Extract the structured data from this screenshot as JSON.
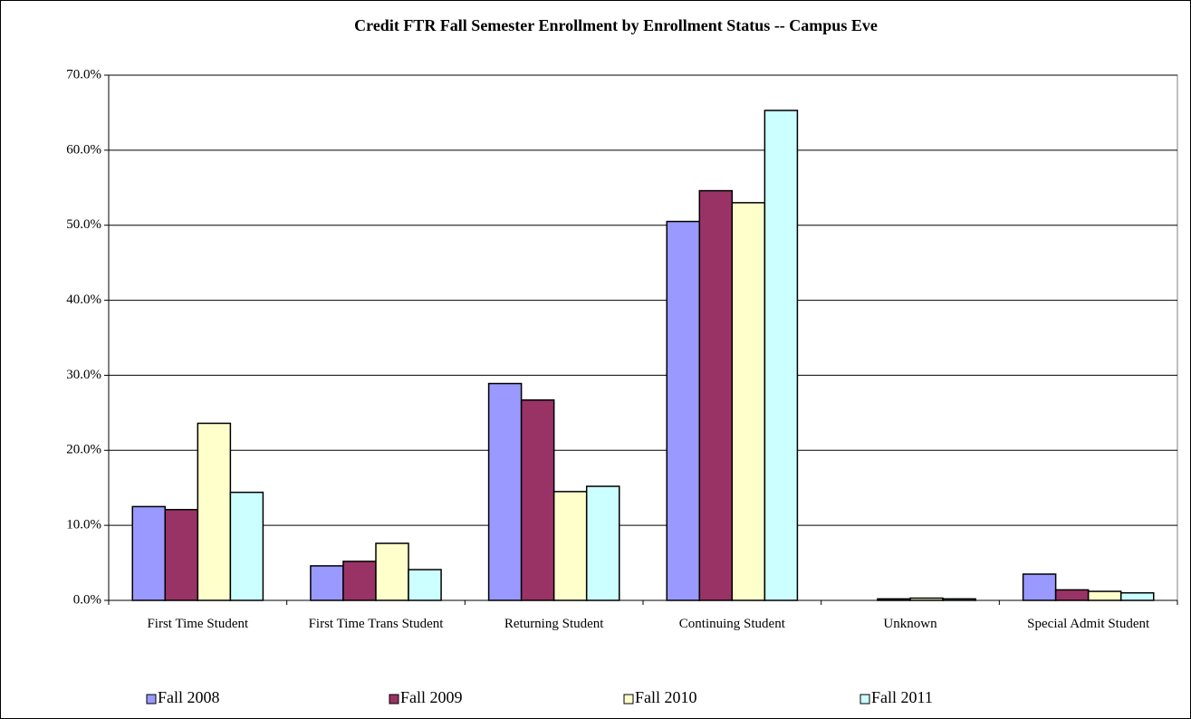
{
  "chart_data": {
    "type": "bar",
    "title": "Credit FTR Fall Semester Enrollment by Enrollment Status -- Campus Eve",
    "categories": [
      "First Time Student",
      "First Time Trans Student",
      "Returning Student",
      "Continuing Student",
      "Unknown",
      "Special Admit Student"
    ],
    "series": [
      {
        "name": "Fall 2008",
        "color": "#9999ff",
        "values": [
          12.5,
          4.6,
          28.9,
          50.5,
          0.0,
          3.5
        ]
      },
      {
        "name": "Fall 2009",
        "color": "#993366",
        "values": [
          12.1,
          5.2,
          26.7,
          54.6,
          0.2,
          1.4
        ]
      },
      {
        "name": "Fall 2010",
        "color": "#ffffcc",
        "values": [
          23.6,
          7.6,
          14.5,
          53.0,
          0.3,
          1.2
        ]
      },
      {
        "name": "Fall 2011",
        "color": "#ccffff",
        "values": [
          14.4,
          4.1,
          15.2,
          65.3,
          0.2,
          1.0
        ]
      }
    ],
    "ylim": [
      0,
      70
    ],
    "yticks": [
      {
        "value": 0,
        "label": "0.0%"
      },
      {
        "value": 10,
        "label": "10.0%"
      },
      {
        "value": 20,
        "label": "20.0%"
      },
      {
        "value": 30,
        "label": "30.0%"
      },
      {
        "value": 40,
        "label": "40.0%"
      },
      {
        "value": 50,
        "label": "50.0%"
      },
      {
        "value": 60,
        "label": "60.0%"
      },
      {
        "value": 70,
        "label": "70.0%"
      }
    ],
    "grid": true,
    "legend": "bottom"
  }
}
